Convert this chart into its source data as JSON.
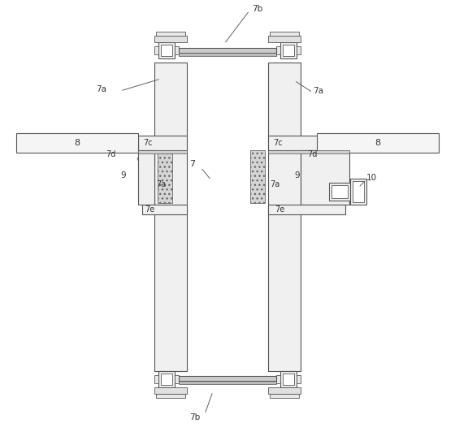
{
  "bg_color": "#ffffff",
  "lc": "#555555",
  "lw": 0.8,
  "fig_width": 5.6,
  "fig_height": 5.32,
  "labels": {
    "7b_top": "7b",
    "7b_bottom": "7b",
    "7a_left_top": "7a",
    "7a_right_top": "7a",
    "7c_left": "7c",
    "7c_right": "7c",
    "7d_left": "7d",
    "7d_right": "7d",
    "7a_left_bot": "7a",
    "7a_right_bot": "7a",
    "7e_left": "7e",
    "7e_right": "7e",
    "9_left": "9",
    "9_right": "9",
    "7_body": "7",
    "8_left": "8",
    "8_right": "8",
    "10": "10"
  }
}
